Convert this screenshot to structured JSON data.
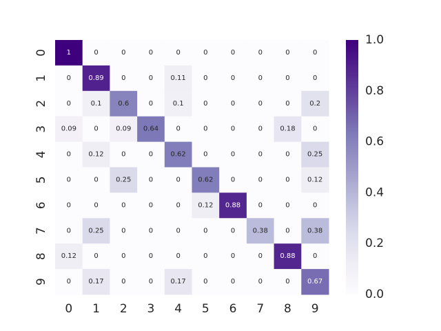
{
  "chart_data": {
    "type": "heatmap",
    "title": "",
    "xlabel": "",
    "ylabel": "",
    "x_tick_labels": [
      "0",
      "1",
      "2",
      "3",
      "4",
      "5",
      "6",
      "7",
      "8",
      "9"
    ],
    "y_tick_labels": [
      "0",
      "1",
      "2",
      "3",
      "4",
      "5",
      "6",
      "7",
      "8",
      "9"
    ],
    "values": [
      [
        1,
        0,
        0,
        0,
        0,
        0,
        0,
        0,
        0,
        0
      ],
      [
        0,
        0.89,
        0,
        0,
        0.11,
        0,
        0,
        0,
        0,
        0
      ],
      [
        0,
        0.1,
        0.6,
        0,
        0.1,
        0,
        0,
        0,
        0,
        0.2
      ],
      [
        0.09,
        0,
        0.09,
        0.64,
        0,
        0,
        0,
        0,
        0.18,
        0
      ],
      [
        0,
        0.12,
        0,
        0,
        0.62,
        0,
        0,
        0,
        0,
        0.25
      ],
      [
        0,
        0,
        0.25,
        0,
        0,
        0.62,
        0,
        0,
        0,
        0.12
      ],
      [
        0,
        0,
        0,
        0,
        0,
        0.12,
        0.88,
        0,
        0,
        0
      ],
      [
        0,
        0.25,
        0,
        0,
        0,
        0,
        0,
        0.38,
        0,
        0.38
      ],
      [
        0.12,
        0,
        0,
        0,
        0,
        0,
        0,
        0,
        0.88,
        0
      ],
      [
        0,
        0.17,
        0,
        0,
        0.17,
        0,
        0,
        0,
        0,
        0.67
      ]
    ],
    "value_range": [
      0,
      1
    ],
    "colormap": "Purples",
    "colorbar": {
      "ticks": [
        0.0,
        0.2,
        0.4,
        0.6,
        0.8,
        1.0
      ],
      "tick_labels": [
        "0.0",
        "0.2",
        "0.4",
        "0.6",
        "0.8",
        "1.0"
      ],
      "placement": "right"
    },
    "annotated": true,
    "grid": false
  },
  "colors": {
    "background": "#ffffff",
    "tick_text": "#262626",
    "cmap_stops": [
      "#fcfbfd",
      "#efedf5",
      "#dadaeb",
      "#bcbddc",
      "#9e9ac8",
      "#807dba",
      "#6a51a3",
      "#54278f",
      "#3f007d"
    ],
    "dark_text": "#262626",
    "light_text": "#ffffff"
  }
}
